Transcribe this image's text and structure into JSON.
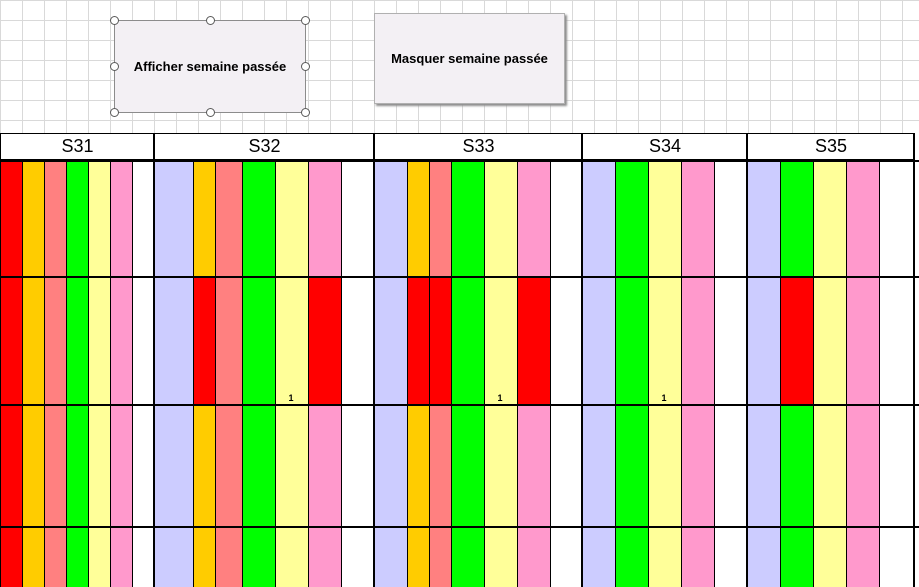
{
  "buttons": {
    "show_label": "Afficher semaine passée",
    "hide_label": "Masquer semaine passée"
  },
  "colors": {
    "red": "#ff0000",
    "orange": "#ffcc00",
    "salmon": "#ff8080",
    "green": "#00ff00",
    "yellow": "#ffff99",
    "pink": "#ff99cc",
    "lavender": "#ccccff",
    "white": "#ffffff"
  },
  "weeks": [
    {
      "label": "S31",
      "columns": [
        [
          "red",
          "red",
          "red",
          "red"
        ],
        [
          "orange",
          "orange",
          "orange",
          "orange"
        ],
        [
          "salmon",
          "salmon",
          "salmon",
          "salmon"
        ],
        [
          "green",
          "green",
          "green",
          "green"
        ],
        [
          "yellow",
          "yellow",
          "yellow",
          "yellow"
        ],
        [
          "pink",
          "pink",
          "pink",
          "pink"
        ],
        [
          "white",
          "white",
          "white",
          "white"
        ]
      ],
      "marks": []
    },
    {
      "label": "S32",
      "columns": [
        [
          "lavender",
          "lavender",
          "lavender",
          "lavender"
        ],
        [
          "orange",
          "red",
          "orange",
          "orange"
        ],
        [
          "salmon",
          "salmon",
          "salmon",
          "salmon"
        ],
        [
          "green",
          "green",
          "green",
          "green"
        ],
        [
          "yellow",
          "yellow",
          "yellow",
          "yellow"
        ],
        [
          "pink",
          "red",
          "pink",
          "pink"
        ],
        [
          "white",
          "white",
          "white",
          "white"
        ]
      ],
      "marks": [
        {
          "col": 4,
          "row": 1,
          "text": "1"
        }
      ]
    },
    {
      "label": "S33",
      "columns": [
        [
          "lavender",
          "lavender",
          "lavender",
          "lavender"
        ],
        [
          "orange",
          "red",
          "orange",
          "orange"
        ],
        [
          "salmon",
          "red",
          "salmon",
          "salmon"
        ],
        [
          "green",
          "green",
          "green",
          "green"
        ],
        [
          "yellow",
          "yellow",
          "yellow",
          "yellow"
        ],
        [
          "pink",
          "red",
          "pink",
          "pink"
        ],
        [
          "white",
          "white",
          "white",
          "white"
        ]
      ],
      "marks": [
        {
          "col": 4,
          "row": 1,
          "text": "1"
        }
      ]
    },
    {
      "label": "S34",
      "columns": [
        [
          "lavender",
          "lavender",
          "lavender",
          "lavender"
        ],
        [
          "green",
          "green",
          "green",
          "green"
        ],
        [
          "yellow",
          "yellow",
          "yellow",
          "yellow"
        ],
        [
          "pink",
          "pink",
          "pink",
          "pink"
        ],
        [
          "white",
          "white",
          "white",
          "white"
        ]
      ],
      "marks": [
        {
          "col": 2,
          "row": 1,
          "text": "1"
        }
      ]
    },
    {
      "label": "S35",
      "columns": [
        [
          "lavender",
          "lavender",
          "lavender",
          "lavender"
        ],
        [
          "green",
          "red",
          "green",
          "green"
        ],
        [
          "yellow",
          "yellow",
          "yellow",
          "yellow"
        ],
        [
          "pink",
          "pink",
          "pink",
          "pink"
        ],
        [
          "white",
          "white",
          "white",
          "white"
        ]
      ],
      "marks": []
    }
  ]
}
